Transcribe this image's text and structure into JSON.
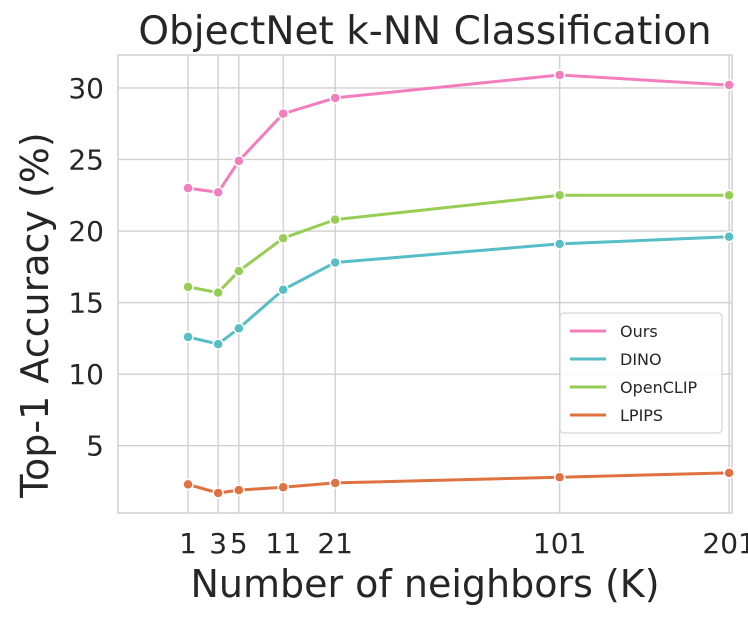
{
  "chart_data": {
    "type": "line",
    "title": "ObjectNet k-NN Classification",
    "xlabel": "Number of neighbors (K)",
    "ylabel": "Top-1 Accuracy (%)",
    "x": [
      1,
      3,
      5,
      11,
      21,
      101,
      201
    ],
    "x_tick_labels": [
      "1",
      "3",
      "5",
      "11",
      "21",
      "101",
      "201"
    ],
    "y_ticks": [
      5,
      10,
      15,
      20,
      25,
      30
    ],
    "y_tick_labels": [
      "5",
      "10",
      "15",
      "20",
      "25",
      "30"
    ],
    "xscale": "sqrt",
    "xlim": [
      -0.5,
      203
    ],
    "ylim": [
      0.3,
      32.3
    ],
    "grid": true,
    "legend_position": "lower-right",
    "series": [
      {
        "name": "Ours",
        "color": "#f47ebd",
        "values": [
          23.0,
          22.7,
          24.9,
          28.2,
          29.3,
          30.9,
          30.2
        ]
      },
      {
        "name": "DINO",
        "color": "#57bdc7",
        "values": [
          12.6,
          12.1,
          13.2,
          15.9,
          17.8,
          19.1,
          19.6
        ]
      },
      {
        "name": "OpenCLIP",
        "color": "#97cd55",
        "values": [
          16.1,
          15.7,
          17.2,
          19.5,
          20.8,
          22.5,
          22.5
        ]
      },
      {
        "name": "LPIPS",
        "color": "#e07140",
        "values": [
          2.3,
          1.7,
          1.9,
          2.1,
          2.4,
          2.8,
          3.1
        ]
      }
    ]
  }
}
